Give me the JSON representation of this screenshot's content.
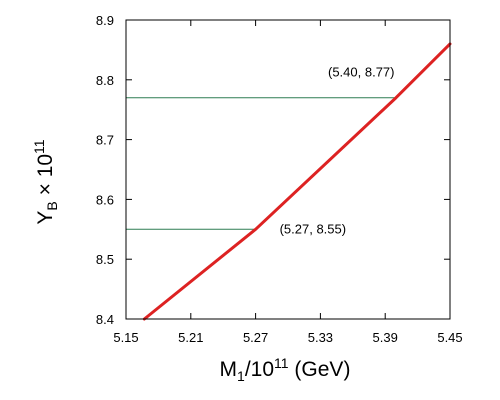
{
  "chart_data": {
    "type": "line",
    "title": "",
    "xlabel": {
      "base": "M",
      "sub": "1",
      "div": "/10",
      "sup": "11",
      "unit": " (GeV)"
    },
    "ylabel": {
      "base": "Y",
      "sub": "B",
      "times": " × 10",
      "sup": "11"
    },
    "xlim": [
      5.15,
      5.45
    ],
    "ylim": [
      8.4,
      8.9
    ],
    "x_ticks": [
      "5.15",
      "5.21",
      "5.27",
      "5.33",
      "5.39",
      "5.45"
    ],
    "y_ticks": [
      "8.4",
      "8.5",
      "8.6",
      "8.7",
      "8.8",
      "8.9"
    ],
    "grid": false,
    "series": [
      {
        "color": "#dd2222",
        "x": [
          5.167,
          5.27,
          5.4,
          5.45
        ],
        "y": [
          8.4,
          8.55,
          8.77,
          8.86
        ]
      }
    ],
    "reference_lines": [
      {
        "y": 8.55,
        "x_end": 5.27,
        "color": "#2e7d52"
      },
      {
        "y": 8.77,
        "x_end": 5.4,
        "color": "#2e7d52"
      }
    ],
    "annotations": [
      {
        "text": "(5.27, 8.55)",
        "x": 5.27,
        "y": 8.55
      },
      {
        "text": "(5.40, 8.77)",
        "x": 5.4,
        "y": 8.77
      }
    ]
  }
}
